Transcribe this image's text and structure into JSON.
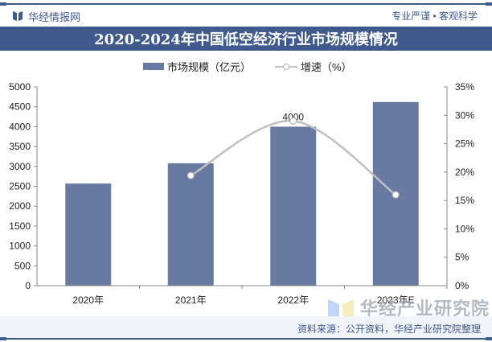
{
  "header": {
    "brand": "华经情报网",
    "motto": "专业严谨 • 客观科学",
    "title": "2020-2024年中国低空经济行业市场规模情况"
  },
  "legend": {
    "bar_label": "市场规模（亿元）",
    "line_label": "增速（%）"
  },
  "footer": {
    "source": "资料来源：公开资料，华经产业研究院整理",
    "watermark_name": "华经产业研究院",
    "watermark_url": "www.huaon.com"
  },
  "colors": {
    "primary": "#3f5a8c",
    "bar": "#697aa2",
    "line": "#c0c0c0"
  },
  "chart_data": {
    "type": "bar",
    "title": "2020-2024年中国低空经济行业市场规模情况",
    "categories": [
      "2020年",
      "2021年",
      "2022年",
      "2023年E"
    ],
    "series": [
      {
        "name": "市场规模（亿元）",
        "type": "bar",
        "axis": "left",
        "values": [
          2570,
          3080,
          4000,
          4620
        ]
      },
      {
        "name": "增速（%）",
        "type": "line",
        "axis": "right",
        "values": [
          null,
          19.4,
          29.0,
          16.0
        ]
      }
    ],
    "data_labels": [
      {
        "category": "2022年",
        "series": "市场规模（亿元）",
        "text": "4000"
      }
    ],
    "left_axis": {
      "ylim": [
        0,
        5000
      ],
      "ticks": [
        "0",
        "500",
        "1000",
        "1500",
        "2000",
        "2500",
        "3000",
        "3500",
        "4000",
        "4500",
        "5000"
      ]
    },
    "right_axis": {
      "ylim": [
        0,
        35
      ],
      "ticks": [
        "0%",
        "5%",
        "10%",
        "15%",
        "20%",
        "25%",
        "30%",
        "35%"
      ]
    },
    "xlabel": "",
    "ylabel": "",
    "legend_position": "top",
    "grid": false
  }
}
